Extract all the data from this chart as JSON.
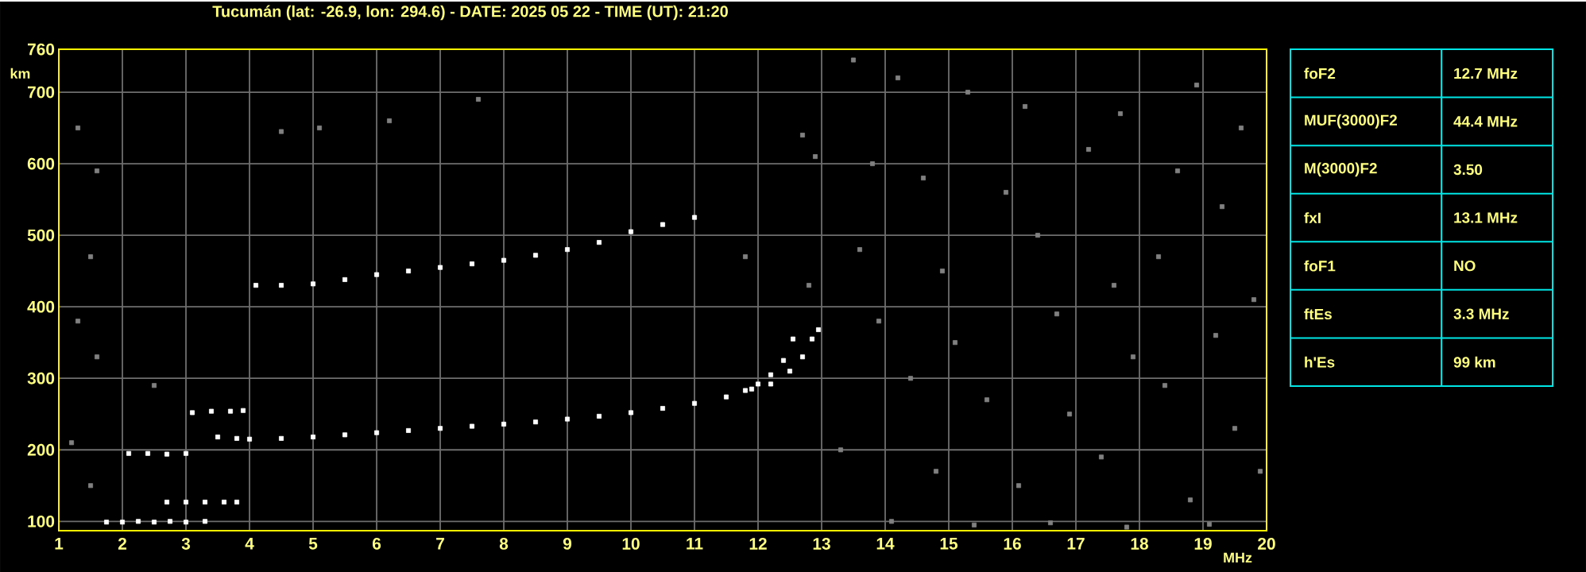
{
  "chart_data": [
    {
      "type": "scatter",
      "title": "Tucumán (lat: -26.9, lon: 294.6) - DATE: 2025 05 22 - TIME (UT): 21:20",
      "xlabel": "MHz",
      "ylabel": "km",
      "xlim": [
        1,
        20
      ],
      "ylim": [
        87,
        760
      ],
      "xticks": [
        1,
        2,
        3,
        4,
        5,
        6,
        7,
        8,
        9,
        10,
        11,
        12,
        13,
        14,
        15,
        16,
        17,
        18,
        19,
        20
      ],
      "yticks": [
        100,
        200,
        300,
        400,
        500,
        600,
        700,
        760
      ],
      "grid": true,
      "marker": "square",
      "series": [
        {
          "color": "#ffffff",
          "x": [
            3.5,
            3.8,
            4.0,
            4.5,
            5.0,
            5.5,
            6.0,
            6.5,
            7.0,
            7.5,
            8.0,
            8.5,
            9.0,
            9.5,
            10.0,
            10.5,
            11.0,
            11.5,
            11.8,
            12.0,
            12.2,
            12.4,
            12.55
          ],
          "values": [
            218,
            216,
            215,
            216,
            218,
            221,
            224,
            227,
            230,
            233,
            236,
            239,
            243,
            247,
            252,
            258,
            265,
            274,
            283,
            292,
            305,
            325,
            355
          ]
        },
        {
          "color": "#ffffff",
          "x": [
            11.9,
            12.2,
            12.5,
            12.7,
            12.85,
            12.95
          ],
          "values": [
            285,
            292,
            310,
            330,
            355,
            368
          ]
        },
        {
          "color": "#ffffff",
          "x": [
            4.1,
            4.5,
            5.0,
            5.5,
            6.0,
            6.5,
            7.0,
            7.5,
            8.0,
            8.5,
            9.0,
            9.5,
            10.0,
            10.5,
            11.0
          ],
          "values": [
            430,
            430,
            432,
            438,
            445,
            450,
            455,
            460,
            465,
            472,
            480,
            490,
            505,
            515,
            525
          ]
        },
        {
          "color": "#ffffff",
          "x": [
            1.75,
            2.0,
            2.25,
            2.5,
            2.75,
            3.0,
            3.3
          ],
          "values": [
            99,
            99,
            100,
            99,
            100,
            99,
            100
          ]
        },
        {
          "color": "#ffffff",
          "x": [
            2.7,
            3.0,
            3.3,
            3.6,
            3.8
          ],
          "values": [
            127,
            127,
            127,
            127,
            127
          ]
        },
        {
          "color": "#ffffff",
          "x": [
            2.1,
            2.4,
            2.7,
            3.0
          ],
          "values": [
            195,
            195,
            194,
            195
          ]
        },
        {
          "color": "#ffffff",
          "x": [
            3.1,
            3.4,
            3.7,
            3.9
          ],
          "values": [
            252,
            254,
            254,
            255
          ]
        },
        {
          "color": "#808080",
          "x": [
            1.3,
            1.6,
            1.5,
            1.3,
            1.6,
            1.2,
            1.5,
            2.5,
            4.5,
            5.1,
            6.2,
            7.6,
            11.8,
            12.8,
            12.9,
            12.7,
            13.5,
            14.2,
            15.3,
            16.2,
            17.7,
            18.9,
            19.6,
            13.8,
            14.6,
            15.9,
            17.2,
            18.6,
            19.3,
            13.6,
            14.9,
            16.4,
            17.6,
            18.3,
            19.8,
            13.9,
            15.1,
            16.7,
            17.9,
            19.2,
            14.4,
            15.6,
            16.9,
            18.4,
            19.5,
            13.3,
            14.8,
            16.1,
            17.4,
            18.8,
            19.9,
            14.1,
            15.4,
            16.6,
            17.8,
            19.1
          ],
          "values": [
            650,
            590,
            470,
            380,
            330,
            210,
            150,
            290,
            645,
            650,
            660,
            690,
            470,
            430,
            610,
            640,
            745,
            720,
            700,
            680,
            670,
            710,
            650,
            600,
            580,
            560,
            620,
            590,
            540,
            480,
            450,
            500,
            430,
            470,
            410,
            380,
            350,
            390,
            330,
            360,
            300,
            270,
            250,
            290,
            230,
            200,
            170,
            150,
            190,
            130,
            170,
            100,
            95,
            98,
            92,
            96
          ]
        }
      ]
    },
    {
      "type": "other",
      "categories": [
        "foF2",
        "MUF(3000)F2",
        "M(3000)F2",
        "fxI",
        "foF1",
        "ftEs",
        "h'Es"
      ],
      "value_labels": [
        "12.7 MHz",
        "44.4 MHz",
        "3.50",
        "13.1 MHz",
        "NO",
        "3.3 MHz",
        "99 km"
      ]
    }
  ]
}
